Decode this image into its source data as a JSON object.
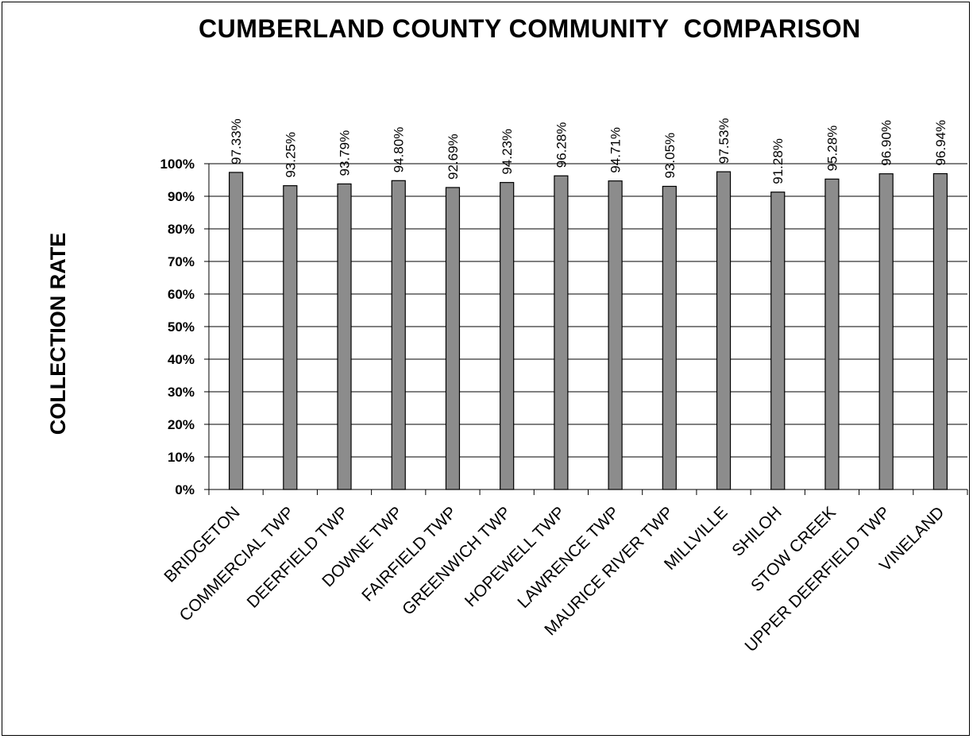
{
  "chart_data": {
    "type": "bar",
    "title": "CUMBERLAND COUNTY COMMUNITY  COMPARISON",
    "xlabel": "",
    "ylabel": "COLLECTION RATE",
    "ylim": [
      0,
      100
    ],
    "yticks": [
      "0%",
      "10%",
      "20%",
      "30%",
      "40%",
      "50%",
      "60%",
      "70%",
      "80%",
      "90%",
      "100%"
    ],
    "grid": true,
    "legend": "none",
    "categories": [
      "BRIDGETON",
      "COMMERCIAL TWP",
      "DEERFIELD TWP",
      "DOWNE TWP",
      "FAIRFIELD TWP",
      "GREENWICH TWP",
      "HOPEWELL TWP",
      "LAWRENCE TWP",
      "MAURICE RIVER TWP",
      "MILLVILLE",
      "SHILOH",
      "STOW CREEK",
      "UPPER DEERFIELD TWP",
      "VINELAND"
    ],
    "values": [
      97.33,
      93.25,
      93.79,
      94.8,
      92.69,
      94.23,
      96.28,
      94.71,
      93.05,
      97.53,
      91.28,
      95.28,
      96.9,
      96.94
    ],
    "data_labels": [
      "97.33%",
      "93.25%",
      "93.79%",
      "94.80%",
      "92.69%",
      "94.23%",
      "96.28%",
      "94.71%",
      "93.05%",
      "97.53%",
      "91.28%",
      "95.28%",
      "96.90%",
      "96.94%"
    ],
    "bar_color": "#8c8c8c",
    "bar_edge_color": "#000000"
  }
}
